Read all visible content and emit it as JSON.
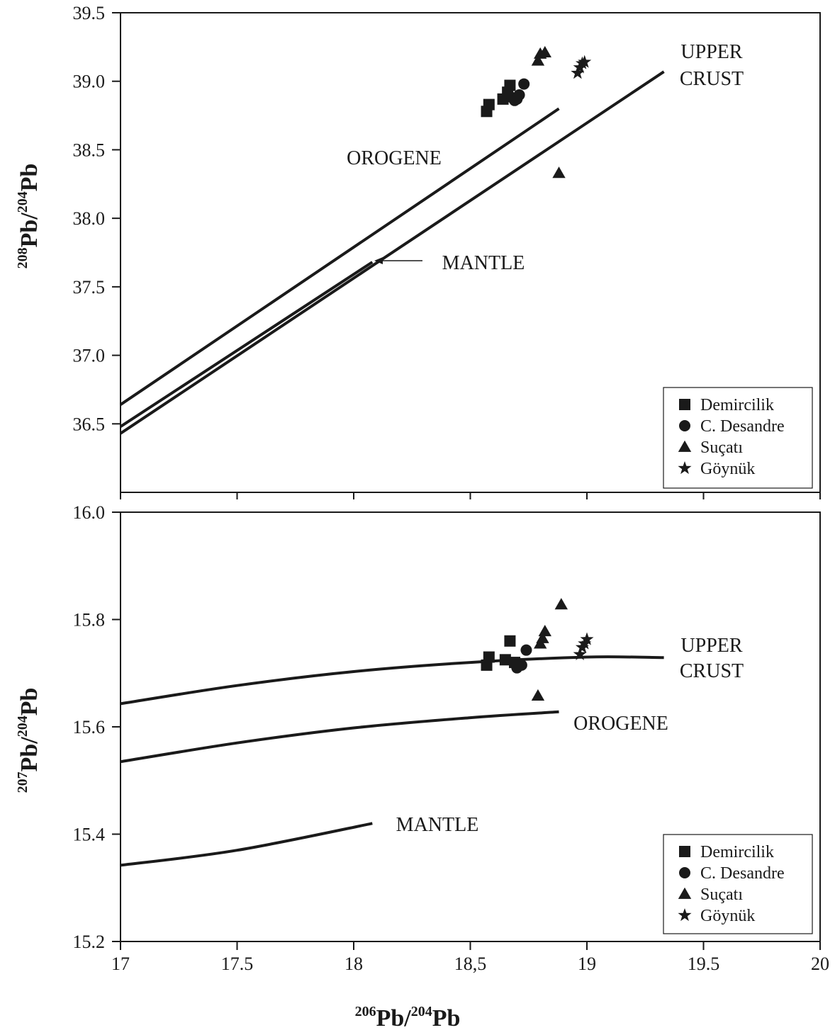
{
  "chart_data": [
    {
      "type": "scatter",
      "panel": "top",
      "title": "",
      "ylabel": {
        "sup": "208",
        "main": "Pb/",
        "sup2": "204",
        "main2": "Pb"
      },
      "xlabel": "",
      "xlim": [
        17,
        20
      ],
      "ylim": [
        36.0,
        39.5
      ],
      "yticks": [
        "39.5",
        "39.0",
        "38.5",
        "38.0",
        "37.5",
        "37.0",
        "36.5"
      ],
      "grid": false,
      "legend_position": "bottom-right",
      "reference_lines": [
        {
          "label": "OROGENE",
          "points": [
            [
              17.0,
              36.64
            ],
            [
              18.88,
              38.8
            ]
          ]
        },
        {
          "label": "MANTLE",
          "points": [
            [
              17.0,
              36.48
            ],
            [
              18.08,
              37.68
            ]
          ]
        },
        {
          "label": "UPPER CRUST",
          "points": [
            [
              17.0,
              36.43
            ],
            [
              19.33,
              39.07
            ]
          ]
        }
      ],
      "labels": {
        "orogene": "OROGENE",
        "mantle": "MANTLE",
        "upper_crust_1": "UPPER",
        "upper_crust_2": "CRUST"
      },
      "series": [
        {
          "name": "Demircilik",
          "marker": "square",
          "points": [
            [
              18.57,
              38.78
            ],
            [
              18.58,
              38.83
            ],
            [
              18.64,
              38.87
            ],
            [
              18.66,
              38.92
            ],
            [
              18.67,
              38.97
            ]
          ]
        },
        {
          "name": "C. Desandre",
          "marker": "circle",
          "points": [
            [
              18.68,
              38.88
            ],
            [
              18.69,
              38.86
            ],
            [
              18.7,
              38.87
            ],
            [
              18.71,
              38.9
            ],
            [
              18.73,
              38.98
            ]
          ]
        },
        {
          "name": "Suçatı",
          "marker": "triangle",
          "points": [
            [
              18.79,
              39.15
            ],
            [
              18.8,
              39.2
            ],
            [
              18.82,
              39.21
            ],
            [
              18.88,
              38.33
            ]
          ]
        },
        {
          "name": "Göynük",
          "marker": "star",
          "points": [
            [
              18.96,
              39.06
            ],
            [
              18.97,
              39.1
            ],
            [
              18.98,
              39.13
            ],
            [
              18.99,
              39.14
            ]
          ]
        }
      ]
    },
    {
      "type": "scatter",
      "panel": "bottom",
      "title": "",
      "ylabel": {
        "sup": "207",
        "main": "Pb/",
        "sup2": "204",
        "main2": "Pb"
      },
      "xlabel": {
        "sup": "206",
        "main": "Pb/",
        "sup2": "204",
        "main2": "Pb"
      },
      "xlim": [
        17,
        20
      ],
      "ylim": [
        15.2,
        16.0
      ],
      "xticks": [
        "17",
        "17.5",
        "18",
        "18,5",
        "19",
        "19.5",
        "20"
      ],
      "yticks": [
        "16.0",
        "15.8",
        "15.6",
        "15.4",
        "15.2"
      ],
      "grid": false,
      "legend_position": "bottom-right",
      "reference_lines": [
        {
          "label": "UPPER CRUST",
          "points": [
            [
              17.0,
              15.643
            ],
            [
              17.5,
              15.677
            ],
            [
              18.0,
              15.703
            ],
            [
              18.5,
              15.72
            ],
            [
              19.0,
              15.73
            ],
            [
              19.33,
              15.729
            ]
          ]
        },
        {
          "label": "OROGENE",
          "points": [
            [
              17.0,
              15.535
            ],
            [
              17.5,
              15.57
            ],
            [
              18.0,
              15.598
            ],
            [
              18.5,
              15.617
            ],
            [
              18.88,
              15.628
            ]
          ]
        },
        {
          "label": "MANTLE",
          "points": [
            [
              17.0,
              15.342
            ],
            [
              17.5,
              15.37
            ],
            [
              18.08,
              15.42
            ]
          ]
        }
      ],
      "labels": {
        "orogene": "OROGENE",
        "mantle": "MANTLE",
        "upper_crust_1": "UPPER",
        "upper_crust_2": "CRUST"
      },
      "series": [
        {
          "name": "Demircilik",
          "marker": "square",
          "points": [
            [
              18.57,
              15.715
            ],
            [
              18.58,
              15.73
            ],
            [
              18.65,
              15.725
            ],
            [
              18.67,
              15.76
            ],
            [
              18.69,
              15.72
            ]
          ]
        },
        {
          "name": "C. Desandre",
          "marker": "circle",
          "points": [
            [
              18.7,
              15.71
            ],
            [
              18.71,
              15.718
            ],
            [
              18.72,
              15.715
            ],
            [
              18.74,
              15.743
            ]
          ]
        },
        {
          "name": "Suçatı",
          "marker": "triangle",
          "points": [
            [
              18.79,
              15.658
            ],
            [
              18.8,
              15.755
            ],
            [
              18.81,
              15.765
            ],
            [
              18.82,
              15.778
            ],
            [
              18.89,
              15.828
            ]
          ]
        },
        {
          "name": "Göynük",
          "marker": "star",
          "points": [
            [
              18.97,
              15.735
            ],
            [
              18.98,
              15.748
            ],
            [
              18.99,
              15.755
            ],
            [
              19.0,
              15.763
            ]
          ]
        }
      ]
    }
  ]
}
